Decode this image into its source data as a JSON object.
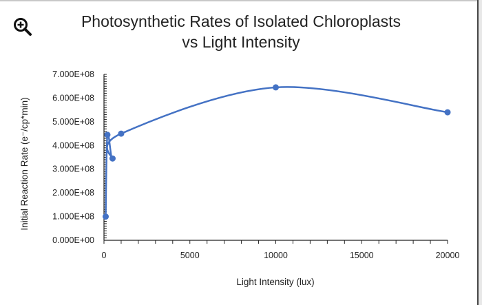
{
  "chart_data": {
    "type": "scatter",
    "title_line1": "Photosynthetic Rates of Isolated Chloroplasts",
    "title_line2": "vs Light Intensity",
    "xlabel": "Light Intensity (lux)",
    "ylabel": "Initial Reaction Rate (e⁻/cp*min)",
    "xlim": [
      0,
      20000
    ],
    "ylim": [
      0,
      700000000
    ],
    "x_ticks": [
      "0",
      "5000",
      "10000",
      "15000",
      "20000"
    ],
    "x_tick_values": [
      0,
      5000,
      10000,
      15000,
      20000
    ],
    "y_ticks": [
      "0.000E+00",
      "1.000E+08",
      "2.000E+08",
      "3.000E+08",
      "4.000E+08",
      "5.000E+08",
      "6.000E+08",
      "7.000E+08"
    ],
    "y_tick_values": [
      0,
      100000000,
      200000000,
      300000000,
      400000000,
      500000000,
      600000000,
      700000000
    ],
    "grid": false,
    "smooth_line": true,
    "series": [
      {
        "color": "#4472c4",
        "x": [
          100,
          200,
          500,
          1000,
          10000,
          20000
        ],
        "y": [
          100000000,
          445000000,
          345000000,
          450000000,
          645000000,
          540000000
        ]
      }
    ]
  },
  "toolbar": {
    "zoom_icon": "zoom-in-icon"
  }
}
